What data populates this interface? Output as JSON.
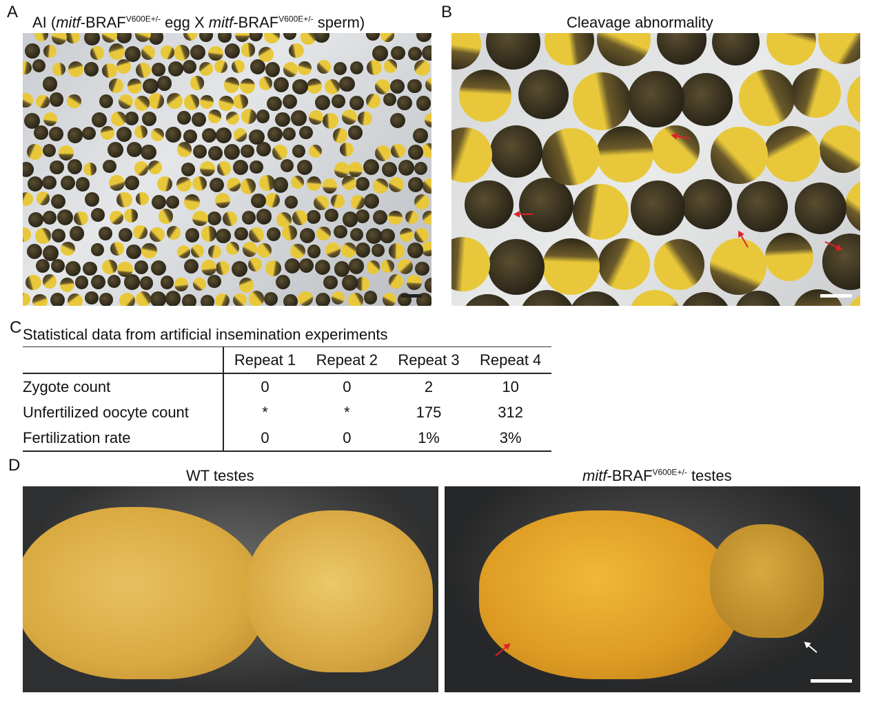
{
  "panel_a": {
    "label": "A",
    "title_pre": "AI (",
    "title_gene1": "mitf",
    "title_mid1": "-BRAF",
    "title_sup1": "V600E+/-",
    "title_mid2": " egg X ",
    "title_gene2": "mitf",
    "title_mid3": "-BRAF",
    "title_sup2": "V600E+/-",
    "title_post": " sperm)"
  },
  "panel_b": {
    "label": "B",
    "title": "Cleavage abnormality"
  },
  "panel_c": {
    "label": "C",
    "title": "Statistical data from artificial insemination experiments",
    "columns": [
      "Repeat 1",
      "Repeat 2",
      "Repeat 3",
      "Repeat 4"
    ],
    "rows": [
      {
        "label": "Zygote count",
        "values": [
          "0",
          "0",
          "2",
          "10"
        ]
      },
      {
        "label": "Unfertilized oocyte count",
        "values": [
          "*",
          "*",
          "175",
          "312"
        ]
      },
      {
        "label": "Fertilization rate",
        "values": [
          "0",
          "0",
          "1%",
          "3%"
        ]
      }
    ]
  },
  "panel_d": {
    "label": "D",
    "left_title": "WT testes",
    "right_gene": "mitf",
    "right_mid": "-BRAF",
    "right_sup": "V600E+/-",
    "right_post": " testes"
  },
  "colors": {
    "arrow_red": "#e0202a",
    "arrow_white": "#ffffff",
    "egg_dark": "#2a2518",
    "egg_yellow": "#e8c83a"
  }
}
